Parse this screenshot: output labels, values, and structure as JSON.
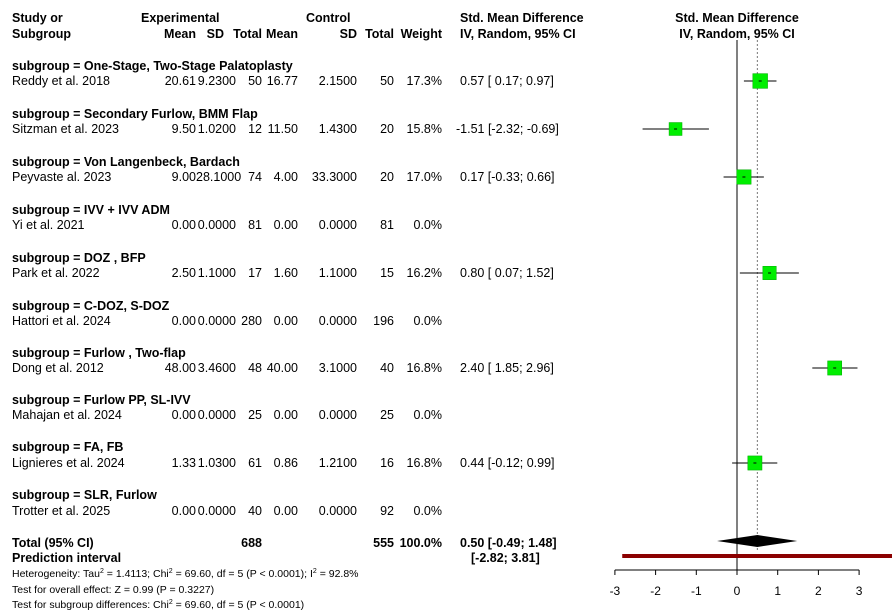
{
  "header": {
    "col_study": [
      "Study or",
      "Subgroup"
    ],
    "experimental": "Experimental",
    "control": "Control",
    "mean": "Mean",
    "sd": "SD",
    "total": "Total",
    "weight": "Weight",
    "smd_title": "Std. Mean Difference",
    "smd_sub": "IV, Random, 95% CI"
  },
  "subgroups": [
    {
      "title": "subgroup = One-Stage,  Two-Stage Palatoplasty",
      "study": "Reddy et al. 2018",
      "e_mean": "20.61",
      "e_sd": "9.2300",
      "e_total": "50",
      "c_mean": "16.77",
      "c_sd": "2.1500",
      "c_total": "50",
      "weight": "17.3%",
      "ci_text": "0.57 [ 0.17;  0.97]"
    },
    {
      "title": "subgroup = Secondary Furlow, BMM Flap",
      "study": "Sitzman et al. 2023",
      "e_mean": "9.50",
      "e_sd": "1.0200",
      "e_total": "12",
      "c_mean": "11.50",
      "c_sd": "1.4300",
      "c_total": "20",
      "weight": "15.8%",
      "ci_text": "-1.51 [-2.32; -0.69]"
    },
    {
      "title": "subgroup = Von Langenbeck, Bardach",
      "study": "Peyvaste al. 2023",
      "e_mean": "9.00",
      "e_sd": "28.1000",
      "e_total": "74",
      "c_mean": "4.00",
      "c_sd": "33.3000",
      "c_total": "20",
      "weight": "17.0%",
      "ci_text": "0.17 [-0.33;  0.66]"
    },
    {
      "title": "subgroup = IVV + IVV ADM",
      "study": "Yi et al. 2021",
      "e_mean": "0.00",
      "e_sd": "0.0000",
      "e_total": "81",
      "c_mean": "0.00",
      "c_sd": "0.0000",
      "c_total": "81",
      "weight": "0.0%",
      "ci_text": ""
    },
    {
      "title": "subgroup = DOZ , BFP",
      "study": "Park et al. 2022",
      "e_mean": "2.50",
      "e_sd": "1.1000",
      "e_total": "17",
      "c_mean": "1.60",
      "c_sd": "1.1000",
      "c_total": "15",
      "weight": "16.2%",
      "ci_text": "0.80 [ 0.07;  1.52]"
    },
    {
      "title": "subgroup = C-DOZ, S-DOZ",
      "study": "Hattori et al. 2024",
      "e_mean": "0.00",
      "e_sd": "0.0000",
      "e_total": "280",
      "c_mean": "0.00",
      "c_sd": "0.0000",
      "c_total": "196",
      "weight": "0.0%",
      "ci_text": ""
    },
    {
      "title": "subgroup = Furlow , Two-flap",
      "study": "Dong et al. 2012",
      "e_mean": "48.00",
      "e_sd": "3.4600",
      "e_total": "48",
      "c_mean": "40.00",
      "c_sd": "3.1000",
      "c_total": "40",
      "weight": "16.8%",
      "ci_text": "2.40 [ 1.85;  2.96]"
    },
    {
      "title": "subgroup = Furlow PP, SL-IVV",
      "study": "Mahajan et al. 2024",
      "e_mean": "0.00",
      "e_sd": "0.0000",
      "e_total": "25",
      "c_mean": "0.00",
      "c_sd": "0.0000",
      "c_total": "25",
      "weight": "0.0%",
      "ci_text": ""
    },
    {
      "title": "subgroup = FA, FB",
      "study": "Lignieres et al. 2024",
      "e_mean": "1.33",
      "e_sd": "1.0300",
      "e_total": "61",
      "c_mean": "0.86",
      "c_sd": "1.2100",
      "c_total": "16",
      "weight": "16.8%",
      "ci_text": "0.44 [-0.12;  0.99]"
    },
    {
      "title": "subgroup = SLR, Furlow",
      "study": "Trotter et al. 2025",
      "e_mean": "0.00",
      "e_sd": "0.0000",
      "e_total": "40",
      "c_mean": "0.00",
      "c_sd": "0.0000",
      "c_total": "92",
      "weight": "0.0%",
      "ci_text": ""
    }
  ],
  "total": {
    "label": "Total (95% CI)",
    "e_total": "688",
    "c_total": "555",
    "weight": "100.0%",
    "ci_text": "0.50 [-0.49;  1.48]",
    "pi_label": "Prediction interval",
    "pi_text": "[-2.82;  3.81]"
  },
  "footer": {
    "het_a": "Heterogeneity: Tau",
    "het_b": " = 1.4113; Chi",
    "het_c": " = 69.60, df = 5 (P < 0.0001); I",
    "het_d": " = 92.8%",
    "overall": "Test for overall effect: Z = 0.99 (P = 0.3227)",
    "subg_a": "Test for subgroup differences: Chi",
    "subg_b": " = 69.60, df = 5 (P < 0.0001)",
    "sup2": "2"
  },
  "colors": {
    "box": "#00ee00",
    "pi_bar": "#8b0000",
    "line": "#000000"
  },
  "chart_data": {
    "type": "forest",
    "xlim": [
      -3,
      3.9
    ],
    "ticks": [
      -3,
      -2,
      -1,
      0,
      1,
      2,
      3
    ],
    "null_line": 0,
    "studies": [
      {
        "study": "Reddy et al. 2018",
        "smd": 0.57,
        "lower": 0.17,
        "upper": 0.97,
        "weight": 17.3
      },
      {
        "study": "Sitzman et al. 2023",
        "smd": -1.51,
        "lower": -2.32,
        "upper": -0.69,
        "weight": 15.8
      },
      {
        "study": "Peyvaste al. 2023",
        "smd": 0.17,
        "lower": -0.33,
        "upper": 0.66,
        "weight": 17.0
      },
      {
        "study": "Yi et al. 2021",
        "smd": null,
        "lower": null,
        "upper": null,
        "weight": 0.0
      },
      {
        "study": "Park et al. 2022",
        "smd": 0.8,
        "lower": 0.07,
        "upper": 1.52,
        "weight": 16.2
      },
      {
        "study": "Hattori et al. 2024",
        "smd": null,
        "lower": null,
        "upper": null,
        "weight": 0.0
      },
      {
        "study": "Dong et al. 2012",
        "smd": 2.4,
        "lower": 1.85,
        "upper": 2.96,
        "weight": 16.8
      },
      {
        "study": "Mahajan et al. 2024",
        "smd": null,
        "lower": null,
        "upper": null,
        "weight": 0.0
      },
      {
        "study": "Lignieres et al. 2024",
        "smd": 0.44,
        "lower": -0.12,
        "upper": 0.99,
        "weight": 16.8
      },
      {
        "study": "Trotter et al. 2025",
        "smd": null,
        "lower": null,
        "upper": null,
        "weight": 0.0
      }
    ],
    "pooled": {
      "smd": 0.5,
      "lower": -0.49,
      "upper": 1.48
    },
    "prediction_interval": {
      "lower": -2.82,
      "upper": 3.81
    }
  }
}
